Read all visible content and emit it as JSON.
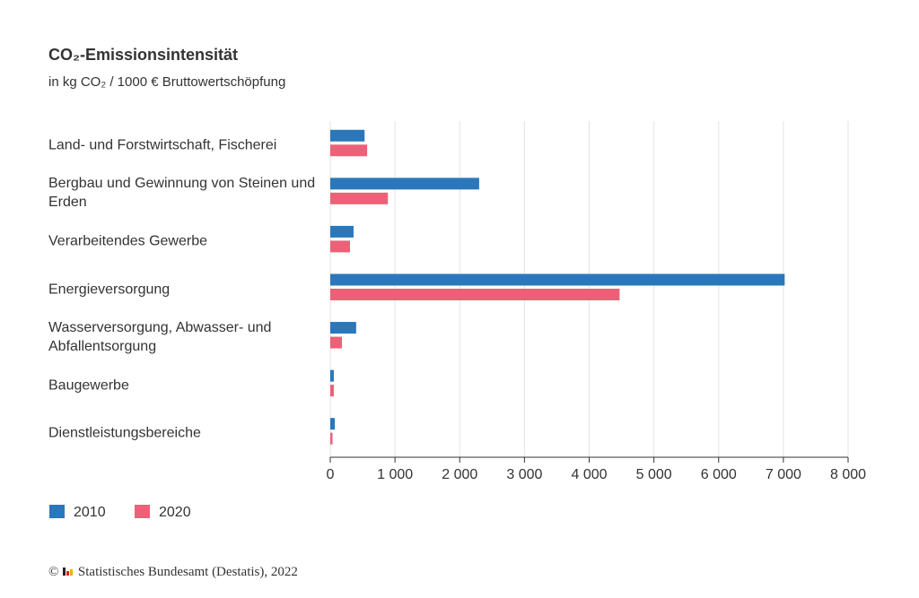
{
  "chart_data": {
    "type": "hbar",
    "title": "CO₂-Emissionsintensität",
    "subtitle": "in kg CO₂ / 1000 € Bruttowertschöpfung",
    "categories": [
      "Land- und Forstwirtschaft, Fischerei",
      "Bergbau und Gewinnung von Steinen und Erden",
      "Verarbeitendes Gewerbe",
      "Energieversorgung",
      "Wasserversorgung, Abwasser- und Abfallentsorgung",
      "Baugewerbe",
      "Dienstleistungsbereiche"
    ],
    "series": [
      {
        "name": "2010",
        "color": "#2a78bb",
        "values": [
          530,
          2300,
          360,
          7020,
          400,
          55,
          70
        ]
      },
      {
        "name": "2020",
        "color": "#ec6177",
        "values": [
          570,
          890,
          305,
          4470,
          180,
          55,
          35
        ]
      }
    ],
    "xlim": [
      0,
      8000
    ],
    "xticks": [
      0,
      {
        "value": 1000,
        "label": "1 000"
      },
      {
        "value": 2000,
        "label": "2 000"
      },
      {
        "value": 3000,
        "label": "3 000"
      },
      {
        "value": 4000,
        "label": "4 000"
      },
      {
        "value": 5000,
        "label": "5 000"
      },
      {
        "value": 6000,
        "label": "6 000"
      },
      {
        "value": 7000,
        "label": "7 000"
      },
      {
        "value": 8000,
        "label": "8 000"
      }
    ],
    "grid": true,
    "copyright": "©",
    "source": "Statistisches Bundesamt (Destatis), 2022"
  }
}
